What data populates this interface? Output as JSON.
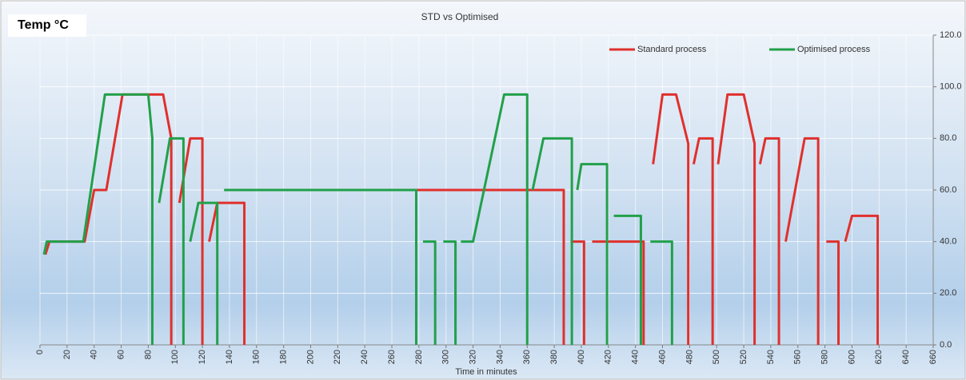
{
  "chart_data": {
    "type": "line",
    "title": "STD vs Optimised",
    "corner_label": "Temp °C",
    "x_label": "Time in minutes",
    "xlim": [
      0,
      660
    ],
    "xticks": [
      0,
      20,
      40,
      60,
      80,
      100,
      120,
      140,
      160,
      180,
      200,
      220,
      240,
      260,
      280,
      300,
      320,
      340,
      360,
      380,
      400,
      420,
      440,
      460,
      480,
      500,
      520,
      540,
      560,
      580,
      600,
      620,
      640,
      660
    ],
    "ylim": [
      0,
      120
    ],
    "yticks": [
      {
        "value": 0,
        "label": "0.0"
      },
      {
        "value": 20,
        "label": "20.0"
      },
      {
        "value": 40,
        "label": "40.0"
      },
      {
        "value": 60,
        "label": "60.0"
      },
      {
        "value": 80,
        "label": "80.0"
      },
      {
        "value": 100,
        "label": "100.0"
      },
      {
        "value": 120,
        "label": "120.0"
      }
    ],
    "grid": true,
    "legend": "top-right",
    "y_axis_side": "right",
    "series": [
      {
        "name": "Standard process",
        "color": "#e0302c",
        "x": [
          4,
          7,
          33,
          40,
          49,
          61,
          91,
          97,
          97,
          null,
          103,
          111,
          120,
          120,
          null,
          125,
          131,
          151,
          151,
          null,
          155,
          387,
          387,
          null,
          392,
          402,
          402,
          null,
          408,
          446,
          446,
          null,
          453,
          460,
          470,
          479,
          479,
          null,
          483,
          487,
          497,
          497,
          null,
          501,
          508,
          520,
          528,
          528,
          null,
          532,
          536,
          546,
          546,
          null,
          551,
          565,
          575,
          575,
          null,
          581,
          590,
          590,
          null,
          595,
          600,
          619,
          619
        ],
        "values": [
          35,
          40,
          40,
          60,
          60,
          97,
          97,
          80,
          0,
          null,
          55,
          80,
          80,
          0,
          null,
          40,
          55,
          55,
          0,
          null,
          60,
          60,
          0,
          null,
          40,
          40,
          0,
          null,
          40,
          40,
          0,
          null,
          70,
          97,
          97,
          78,
          0,
          null,
          70,
          80,
          80,
          0,
          null,
          70,
          97,
          97,
          78,
          0,
          null,
          70,
          80,
          80,
          0,
          null,
          40,
          80,
          80,
          0,
          null,
          40,
          40,
          0,
          null,
          40,
          50,
          50,
          0
        ]
      },
      {
        "name": "Optimised process",
        "color": "#22a04a",
        "x": [
          3,
          5,
          32,
          48,
          80,
          83,
          83,
          null,
          88,
          96,
          106,
          106,
          null,
          111,
          117,
          131,
          131,
          null,
          136,
          278,
          278,
          null,
          283,
          292,
          292,
          null,
          298,
          307,
          307,
          null,
          311,
          320,
          343,
          360,
          360,
          null,
          364,
          372,
          393,
          393,
          null,
          397,
          400,
          419,
          419,
          null,
          424,
          444,
          444,
          null,
          451,
          467,
          467
        ],
        "values": [
          35,
          40,
          40,
          97,
          97,
          80,
          0,
          null,
          55,
          80,
          80,
          0,
          null,
          40,
          55,
          55,
          0,
          null,
          60,
          60,
          0,
          null,
          40,
          40,
          0,
          null,
          40,
          40,
          0,
          null,
          40,
          40,
          97,
          97,
          0,
          null,
          60,
          80,
          80,
          0,
          null,
          60,
          70,
          70,
          0,
          null,
          50,
          50,
          0,
          null,
          40,
          40,
          0
        ]
      }
    ]
  }
}
